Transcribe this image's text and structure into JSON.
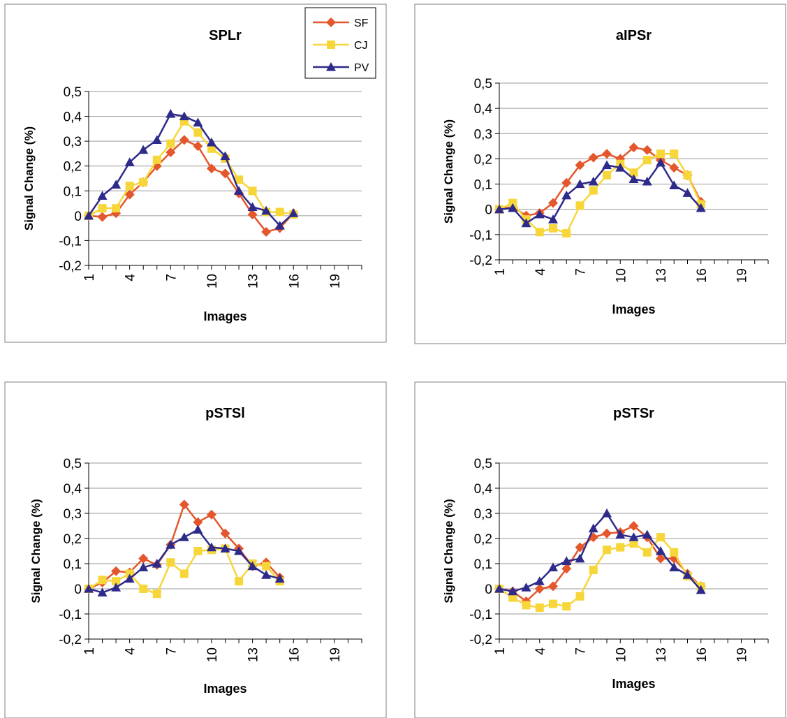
{
  "chart_data": [
    {
      "type": "line",
      "title": "SPLr",
      "xlabel": "Images",
      "ylabel": "Signal Change (%)",
      "ylim": [
        -0.2,
        0.5
      ],
      "xlim": [
        1,
        21
      ],
      "x_ticks": [
        "1",
        "4",
        "7",
        "10",
        "13",
        "16",
        "19"
      ],
      "y_ticks": [
        "-0,2",
        "-0,1",
        "0",
        "0,1",
        "0,2",
        "0,3",
        "0,4",
        "0,5"
      ],
      "grid": true,
      "legend": "top-right",
      "series": [
        {
          "name": "SF",
          "color": "#e4562b",
          "marker": "diamond",
          "x": [
            1,
            2,
            3,
            4,
            5,
            6,
            7,
            8,
            9,
            10,
            11,
            12,
            13,
            14,
            15,
            16
          ],
          "values": [
            0.0,
            -0.005,
            0.01,
            0.085,
            0.135,
            0.2,
            0.255,
            0.305,
            0.28,
            0.19,
            0.17,
            0.09,
            0.005,
            -0.065,
            -0.05,
            0.01
          ]
        },
        {
          "name": "CJ",
          "color": "#f7d63a",
          "marker": "square",
          "x": [
            1,
            2,
            3,
            4,
            5,
            6,
            7,
            8,
            9,
            10,
            11,
            12,
            13,
            14,
            15,
            16
          ],
          "values": [
            0.0,
            0.03,
            0.03,
            0.12,
            0.135,
            0.225,
            0.29,
            0.38,
            0.335,
            0.27,
            0.23,
            0.145,
            0.1,
            0.015,
            0.015,
            0.005
          ]
        },
        {
          "name": "PV",
          "color": "#2e2a8a",
          "marker": "triangle",
          "x": [
            1,
            2,
            3,
            4,
            5,
            6,
            7,
            8,
            9,
            10,
            11,
            12,
            13,
            14,
            15,
            16
          ],
          "values": [
            0.0,
            0.08,
            0.125,
            0.215,
            0.265,
            0.305,
            0.41,
            0.4,
            0.375,
            0.295,
            0.24,
            0.1,
            0.035,
            0.02,
            -0.04,
            0.01
          ]
        }
      ]
    },
    {
      "type": "line",
      "title": "aIPSr",
      "xlabel": "Images",
      "ylabel": "Signal Change (%)",
      "ylim": [
        -0.2,
        0.5
      ],
      "xlim": [
        1,
        21
      ],
      "x_ticks": [
        "1",
        "4",
        "7",
        "10",
        "13",
        "16",
        "19"
      ],
      "y_ticks": [
        "-0,2",
        "-0,1",
        "0",
        "0,1",
        "0,2",
        "0,3",
        "0,4",
        "0,5"
      ],
      "grid": true,
      "series": [
        {
          "name": "SF",
          "color": "#e4562b",
          "marker": "diamond",
          "x": [
            1,
            2,
            3,
            4,
            5,
            6,
            7,
            8,
            9,
            10,
            11,
            12,
            13,
            14,
            15,
            16
          ],
          "values": [
            0.0,
            0.01,
            -0.025,
            -0.015,
            0.025,
            0.105,
            0.175,
            0.205,
            0.22,
            0.2,
            0.245,
            0.235,
            0.195,
            0.165,
            0.135,
            0.03
          ]
        },
        {
          "name": "CJ",
          "color": "#f7d63a",
          "marker": "square",
          "x": [
            1,
            2,
            3,
            4,
            5,
            6,
            7,
            8,
            9,
            10,
            11,
            12,
            13,
            14,
            15,
            16
          ],
          "values": [
            0.0,
            0.025,
            -0.04,
            -0.09,
            -0.075,
            -0.095,
            0.015,
            0.075,
            0.135,
            0.18,
            0.145,
            0.195,
            0.22,
            0.22,
            0.135,
            0.02
          ]
        },
        {
          "name": "PV",
          "color": "#2e2a8a",
          "marker": "triangle",
          "x": [
            1,
            2,
            3,
            4,
            5,
            6,
            7,
            8,
            9,
            10,
            11,
            12,
            13,
            14,
            15,
            16
          ],
          "values": [
            0.0,
            0.005,
            -0.055,
            -0.02,
            -0.04,
            0.055,
            0.1,
            0.11,
            0.175,
            0.165,
            0.12,
            0.11,
            0.185,
            0.095,
            0.065,
            0.005
          ]
        }
      ]
    },
    {
      "type": "line",
      "title": "pSTSl",
      "xlabel": "Images",
      "ylabel": "Signal Change (%)",
      "ylim": [
        -0.2,
        0.5
      ],
      "xlim": [
        1,
        21
      ],
      "x_ticks": [
        "1",
        "4",
        "7",
        "10",
        "13",
        "16",
        "19"
      ],
      "y_ticks": [
        "-0,2",
        "-0,1",
        "0",
        "0,1",
        "0,2",
        "0,3",
        "0,4",
        "0,5"
      ],
      "grid": true,
      "series": [
        {
          "name": "SF",
          "color": "#e4562b",
          "marker": "diamond",
          "x": [
            1,
            2,
            3,
            4,
            5,
            6,
            7,
            8,
            9,
            10,
            11,
            12,
            13,
            14,
            15
          ],
          "values": [
            0.0,
            0.025,
            0.07,
            0.065,
            0.12,
            0.095,
            0.175,
            0.335,
            0.265,
            0.295,
            0.22,
            0.16,
            0.09,
            0.105,
            0.045
          ]
        },
        {
          "name": "CJ",
          "color": "#f7d63a",
          "marker": "square",
          "x": [
            1,
            2,
            3,
            4,
            5,
            6,
            7,
            8,
            9,
            10,
            11,
            12,
            13,
            14,
            15
          ],
          "values": [
            0.0,
            0.035,
            0.03,
            0.06,
            0.0,
            -0.02,
            0.105,
            0.06,
            0.15,
            0.155,
            0.16,
            0.03,
            0.1,
            0.09,
            0.03
          ]
        },
        {
          "name": "PV",
          "color": "#2e2a8a",
          "marker": "triangle",
          "x": [
            1,
            2,
            3,
            4,
            5,
            6,
            7,
            8,
            9,
            10,
            11,
            12,
            13,
            14,
            15
          ],
          "values": [
            0.0,
            -0.015,
            0.005,
            0.04,
            0.085,
            0.1,
            0.175,
            0.205,
            0.235,
            0.165,
            0.16,
            0.15,
            0.09,
            0.055,
            0.04
          ]
        }
      ]
    },
    {
      "type": "line",
      "title": "pSTSr",
      "xlabel": "Images",
      "ylabel": "Signal Change (%)",
      "ylim": [
        -0.2,
        0.5
      ],
      "xlim": [
        1,
        21
      ],
      "x_ticks": [
        "1",
        "4",
        "7",
        "10",
        "13",
        "16",
        "19"
      ],
      "y_ticks": [
        "-0,2",
        "-0,1",
        "0",
        "0,1",
        "0,2",
        "0,3",
        "0,4",
        "0,5"
      ],
      "grid": true,
      "series": [
        {
          "name": "SF",
          "color": "#e4562b",
          "marker": "diamond",
          "x": [
            1,
            2,
            3,
            4,
            5,
            6,
            7,
            8,
            9,
            10,
            11,
            12,
            13,
            14,
            15,
            16
          ],
          "values": [
            0.0,
            -0.01,
            -0.05,
            0.0,
            0.01,
            0.08,
            0.165,
            0.205,
            0.22,
            0.225,
            0.25,
            0.205,
            0.12,
            0.12,
            0.06,
            0.01
          ]
        },
        {
          "name": "CJ",
          "color": "#f7d63a",
          "marker": "square",
          "x": [
            1,
            2,
            3,
            4,
            5,
            6,
            7,
            8,
            9,
            10,
            11,
            12,
            13,
            14,
            15,
            16
          ],
          "values": [
            0.0,
            -0.035,
            -0.065,
            -0.075,
            -0.06,
            -0.07,
            -0.03,
            0.075,
            0.155,
            0.165,
            0.18,
            0.145,
            0.205,
            0.145,
            0.05,
            0.01
          ]
        },
        {
          "name": "PV",
          "color": "#2e2a8a",
          "marker": "triangle",
          "x": [
            1,
            2,
            3,
            4,
            5,
            6,
            7,
            8,
            9,
            10,
            11,
            12,
            13,
            14,
            15,
            16
          ],
          "values": [
            0.0,
            -0.01,
            0.005,
            0.03,
            0.085,
            0.11,
            0.12,
            0.24,
            0.3,
            0.215,
            0.205,
            0.215,
            0.15,
            0.085,
            0.055,
            -0.005
          ]
        }
      ]
    }
  ]
}
